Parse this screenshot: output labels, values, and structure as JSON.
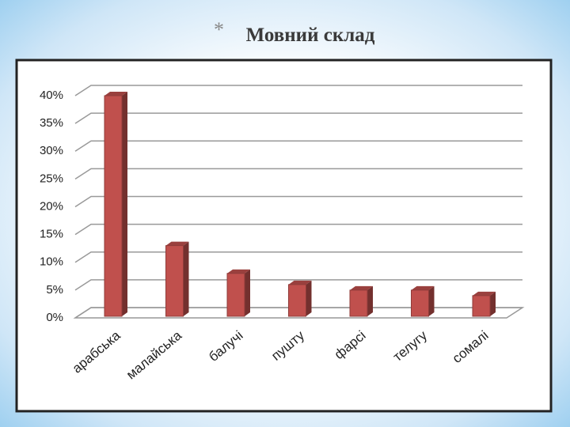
{
  "chart_data": {
    "type": "bar",
    "title": "Мовний склад",
    "title_marker": "*",
    "categories": [
      "арабська",
      "малайська",
      "балучі",
      "пушту",
      "фарсі",
      "телугу",
      "сомалі"
    ],
    "values": [
      40,
      13,
      8,
      6,
      5,
      5,
      4
    ],
    "color": "#c0504d",
    "ylim": [
      0,
      40
    ],
    "yticks": [
      {
        "value": 0,
        "label": "0%"
      },
      {
        "value": 5,
        "label": "5%"
      },
      {
        "value": 10,
        "label": "10%"
      },
      {
        "value": 15,
        "label": "15%"
      },
      {
        "value": 20,
        "label": "20%"
      },
      {
        "value": 25,
        "label": "25%"
      },
      {
        "value": 30,
        "label": "30%"
      },
      {
        "value": 35,
        "label": "35%"
      },
      {
        "value": 40,
        "label": "40%"
      }
    ],
    "grid": true
  }
}
